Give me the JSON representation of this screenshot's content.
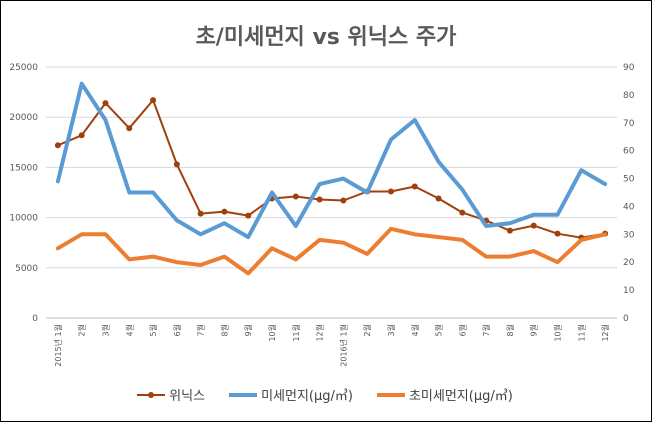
{
  "chart_data": {
    "type": "line",
    "title": "초/미세먼지 vs 위닉스 주가",
    "categories": [
      "2015년 1월",
      "2월",
      "3월",
      "4월",
      "5월",
      "6월",
      "7월",
      "8월",
      "9월",
      "10월",
      "11월",
      "12월",
      "2016년 1월",
      "2월",
      "3월",
      "4월",
      "5월",
      "6월",
      "7월",
      "8월",
      "9월",
      "10월",
      "11월",
      "12월"
    ],
    "y_left": {
      "ylim": [
        0,
        25000
      ],
      "ticks": [
        "0",
        "5000",
        "10000",
        "15000",
        "20000",
        "25000"
      ]
    },
    "y_right": {
      "ylim": [
        0,
        90
      ],
      "ticks": [
        "0",
        "10",
        "20",
        "30",
        "40",
        "50",
        "60",
        "70",
        "80",
        "90"
      ]
    },
    "grid": true,
    "legend_position": "bottom",
    "series": [
      {
        "name": "위닉스",
        "axis": "left",
        "color": "#a0410d",
        "marker": "circle",
        "values": [
          17200,
          18200,
          21400,
          18900,
          21700,
          15300,
          10400,
          10600,
          10200,
          11900,
          12100,
          11800,
          11700,
          12600,
          12600,
          13100,
          11900,
          10500,
          9700,
          8700,
          9200,
          8400,
          8000,
          8400
        ]
      },
      {
        "name": "미세먼지(μg/㎥)",
        "axis": "right",
        "color": "#5b9bd5",
        "marker": "none",
        "values": [
          49,
          84,
          71,
          45,
          45,
          35,
          30,
          34,
          29,
          45,
          33,
          48,
          50,
          45,
          64,
          71,
          56,
          46,
          33,
          34,
          37,
          37,
          53,
          48
        ]
      },
      {
        "name": "초미세먼지(μg/㎥)",
        "axis": "right",
        "color": "#ed7d31",
        "marker": "none",
        "values": [
          25,
          30,
          30,
          21,
          22,
          20,
          19,
          22,
          16,
          25,
          21,
          28,
          27,
          23,
          32,
          30,
          29,
          28,
          22,
          22,
          24,
          20,
          28,
          30
        ]
      }
    ]
  }
}
